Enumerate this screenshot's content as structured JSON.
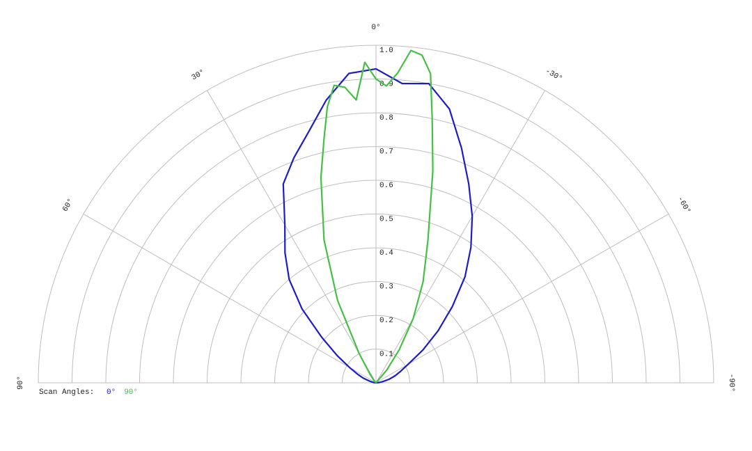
{
  "chart_data": {
    "type": "polar",
    "legend_title": "Scan Angles:",
    "rlim": [
      0,
      1
    ],
    "rticks": [
      {
        "value": 0.1,
        "label": "0.1"
      },
      {
        "value": 0.2,
        "label": "0.2"
      },
      {
        "value": 0.3,
        "label": "0.3"
      },
      {
        "value": 0.4,
        "label": "0.4"
      },
      {
        "value": 0.5,
        "label": "0.5"
      },
      {
        "value": 0.6,
        "label": "0.6"
      },
      {
        "value": 0.7,
        "label": "0.7"
      },
      {
        "value": 0.8,
        "label": "0.8"
      },
      {
        "value": 0.9,
        "label": "0.9"
      },
      {
        "value": 1,
        "label": "1.0"
      }
    ],
    "thetalim": [
      -90,
      90
    ],
    "thetaticks": [
      {
        "value": 90,
        "label": "90°"
      },
      {
        "value": 60,
        "label": "60°"
      },
      {
        "value": 30,
        "label": "30°"
      },
      {
        "value": 0,
        "label": "0°"
      },
      {
        "value": -30,
        "label": "-30°"
      },
      {
        "value": -60,
        "label": "-60°"
      },
      {
        "value": -90,
        "label": "-90°"
      }
    ],
    "grid": true,
    "series": [
      {
        "name": "0°",
        "color": "#1c1cc8",
        "x": [
          -90,
          -85,
          -80,
          -75,
          -70,
          -65,
          -60,
          -55,
          -50,
          -45,
          -40,
          -35,
          -30,
          -25,
          -20,
          -15,
          -10,
          -5,
          0,
          5,
          10,
          15,
          20,
          25,
          30,
          35,
          40,
          45,
          50,
          55,
          60,
          65,
          70,
          75,
          80,
          85,
          90
        ],
        "values": [
          0,
          0.01,
          0.02,
          0.04,
          0.06,
          0.08,
          0.11,
          0.17,
          0.24,
          0.32,
          0.41,
          0.49,
          0.57,
          0.65,
          0.74,
          0.84,
          0.9,
          0.89,
          0.93,
          0.92,
          0.85,
          0.77,
          0.71,
          0.65,
          0.54,
          0.47,
          0.4,
          0.31,
          0.21,
          0.14,
          0.09,
          0.06,
          0.04,
          0.02,
          0.01,
          0.005,
          0
        ]
      },
      {
        "name": "90°",
        "color": "#44c044",
        "x": [
          -90,
          -40,
          -35,
          -30,
          -25,
          -20,
          -15,
          -12,
          -10,
          -8,
          -6,
          -4,
          -2,
          0,
          2,
          4,
          6,
          8,
          10,
          12,
          15,
          20,
          25,
          30,
          35,
          40,
          90
        ],
        "values": [
          0,
          0.05,
          0.12,
          0.22,
          0.33,
          0.45,
          0.65,
          0.8,
          0.93,
          0.98,
          0.99,
          0.92,
          0.88,
          0.9,
          0.95,
          0.84,
          0.88,
          0.89,
          0.83,
          0.74,
          0.63,
          0.45,
          0.27,
          0.1,
          0.03,
          0.01,
          0
        ]
      }
    ]
  }
}
